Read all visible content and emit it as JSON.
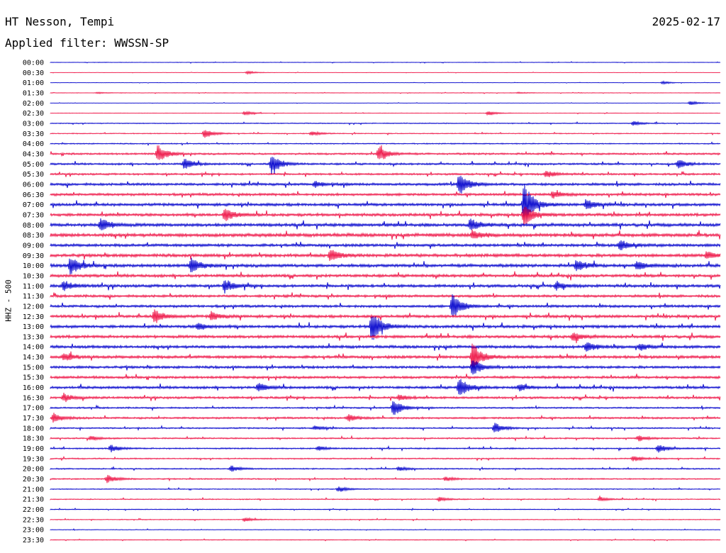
{
  "header": {
    "station": "HT Nesson, Tempi",
    "date": "2025-02-17",
    "filter": "Applied filter: WWSSN-SP"
  },
  "chart_data": {
    "type": "line",
    "ylabel": "HHZ - 500",
    "colors": {
      "even": "#0000cc",
      "odd": "#ee1144"
    },
    "rows": [
      "00:00",
      "00:30",
      "01:00",
      "01:30",
      "02:00",
      "02:30",
      "03:00",
      "03:30",
      "04:00",
      "04:30",
      "05:00",
      "05:30",
      "06:00",
      "06:30",
      "07:00",
      "07:30",
      "08:00",
      "08:30",
      "09:00",
      "09:30",
      "10:00",
      "10:30",
      "11:00",
      "11:30",
      "12:00",
      "12:30",
      "13:00",
      "13:30",
      "14:00",
      "14:30",
      "15:00",
      "15:30",
      "16:00",
      "16:30",
      "17:00",
      "17:30",
      "18:00",
      "18:30",
      "19:00",
      "19:30",
      "20:00",
      "20:30",
      "21:00",
      "21:30",
      "22:00",
      "22:30",
      "23:00",
      "23:30"
    ],
    "noise": [
      0.3,
      0.2,
      0.2,
      0.3,
      0.2,
      0.3,
      0.6,
      0.6,
      0.7,
      1.2,
      1.2,
      1.2,
      1.6,
      1.6,
      1.8,
      1.8,
      2.0,
      2.2,
      1.8,
      2.0,
      2.0,
      1.8,
      1.8,
      1.6,
      1.6,
      1.8,
      1.8,
      1.8,
      1.8,
      1.8,
      1.6,
      1.6,
      1.6,
      1.4,
      1.0,
      1.2,
      0.9,
      0.9,
      0.9,
      0.8,
      0.8,
      0.8,
      0.6,
      0.6,
      0.5,
      0.5,
      0.4,
      0.4
    ],
    "events": [
      {
        "row": 1,
        "t": 0.294,
        "amp": 2
      },
      {
        "row": 2,
        "t": 0.914,
        "amp": 2
      },
      {
        "row": 3,
        "t": 0.07,
        "amp": 1
      },
      {
        "row": 3,
        "t": 0.698,
        "amp": 1
      },
      {
        "row": 4,
        "t": 0.955,
        "amp": 3
      },
      {
        "row": 5,
        "t": 0.29,
        "amp": 3
      },
      {
        "row": 5,
        "t": 0.653,
        "amp": 3
      },
      {
        "row": 6,
        "t": 0.87,
        "amp": 3
      },
      {
        "row": 7,
        "t": 0.23,
        "amp": 7
      },
      {
        "row": 7,
        "t": 0.39,
        "amp": 3
      },
      {
        "row": 9,
        "t": 0.16,
        "amp": 13
      },
      {
        "row": 9,
        "t": 0.49,
        "amp": 12
      },
      {
        "row": 10,
        "t": 0.2,
        "amp": 8
      },
      {
        "row": 10,
        "t": 0.33,
        "amp": 15
      },
      {
        "row": 10,
        "t": 0.937,
        "amp": 6
      },
      {
        "row": 11,
        "t": 0.74,
        "amp": 5
      },
      {
        "row": 12,
        "t": 0.61,
        "amp": 16
      },
      {
        "row": 12,
        "t": 0.395,
        "amp": 4
      },
      {
        "row": 13,
        "t": 0.75,
        "amp": 5
      },
      {
        "row": 14,
        "t": 0.707,
        "amp": 30
      },
      {
        "row": 14,
        "t": 0.8,
        "amp": 8
      },
      {
        "row": 15,
        "t": 0.707,
        "amp": 16
      },
      {
        "row": 15,
        "t": 0.26,
        "amp": 10
      },
      {
        "row": 16,
        "t": 0.075,
        "amp": 10
      },
      {
        "row": 16,
        "t": 0.627,
        "amp": 9
      },
      {
        "row": 17,
        "t": 0.63,
        "amp": 6
      },
      {
        "row": 18,
        "t": 0.85,
        "amp": 8
      },
      {
        "row": 19,
        "t": 0.418,
        "amp": 9
      },
      {
        "row": 19,
        "t": 0.98,
        "amp": 5
      },
      {
        "row": 20,
        "t": 0.03,
        "amp": 13
      },
      {
        "row": 20,
        "t": 0.21,
        "amp": 11
      },
      {
        "row": 20,
        "t": 0.785,
        "amp": 8
      },
      {
        "row": 20,
        "t": 0.875,
        "amp": 6
      },
      {
        "row": 22,
        "t": 0.02,
        "amp": 7
      },
      {
        "row": 22,
        "t": 0.26,
        "amp": 9
      },
      {
        "row": 22,
        "t": 0.755,
        "amp": 5
      },
      {
        "row": 24,
        "t": 0.6,
        "amp": 18
      },
      {
        "row": 25,
        "t": 0.155,
        "amp": 10
      },
      {
        "row": 25,
        "t": 0.24,
        "amp": 6
      },
      {
        "row": 26,
        "t": 0.48,
        "amp": 24
      },
      {
        "row": 26,
        "t": 0.22,
        "amp": 5
      },
      {
        "row": 27,
        "t": 0.78,
        "amp": 6
      },
      {
        "row": 28,
        "t": 0.8,
        "amp": 7
      },
      {
        "row": 28,
        "t": 0.88,
        "amp": 5
      },
      {
        "row": 29,
        "t": 0.63,
        "amp": 20
      },
      {
        "row": 29,
        "t": 0.02,
        "amp": 6
      },
      {
        "row": 30,
        "t": 0.63,
        "amp": 12
      },
      {
        "row": 32,
        "t": 0.61,
        "amp": 14
      },
      {
        "row": 32,
        "t": 0.31,
        "amp": 6
      },
      {
        "row": 32,
        "t": 0.7,
        "amp": 5
      },
      {
        "row": 33,
        "t": 0.02,
        "amp": 6
      },
      {
        "row": 33,
        "t": 0.52,
        "amp": 4
      },
      {
        "row": 34,
        "t": 0.512,
        "amp": 12
      },
      {
        "row": 35,
        "t": 0.005,
        "amp": 7
      },
      {
        "row": 35,
        "t": 0.445,
        "amp": 5
      },
      {
        "row": 36,
        "t": 0.663,
        "amp": 8
      },
      {
        "row": 36,
        "t": 0.395,
        "amp": 3
      },
      {
        "row": 37,
        "t": 0.878,
        "amp": 4
      },
      {
        "row": 37,
        "t": 0.06,
        "amp": 3
      },
      {
        "row": 38,
        "t": 0.09,
        "amp": 5
      },
      {
        "row": 38,
        "t": 0.907,
        "amp": 6
      },
      {
        "row": 38,
        "t": 0.4,
        "amp": 3
      },
      {
        "row": 39,
        "t": 0.87,
        "amp": 4
      },
      {
        "row": 40,
        "t": 0.27,
        "amp": 4
      },
      {
        "row": 40,
        "t": 0.52,
        "amp": 3
      },
      {
        "row": 41,
        "t": 0.085,
        "amp": 6
      },
      {
        "row": 41,
        "t": 0.59,
        "amp": 3
      },
      {
        "row": 42,
        "t": 0.43,
        "amp": 4
      },
      {
        "row": 43,
        "t": 0.58,
        "amp": 3
      },
      {
        "row": 43,
        "t": 0.82,
        "amp": 3
      },
      {
        "row": 45,
        "t": 0.29,
        "amp": 3
      }
    ]
  }
}
